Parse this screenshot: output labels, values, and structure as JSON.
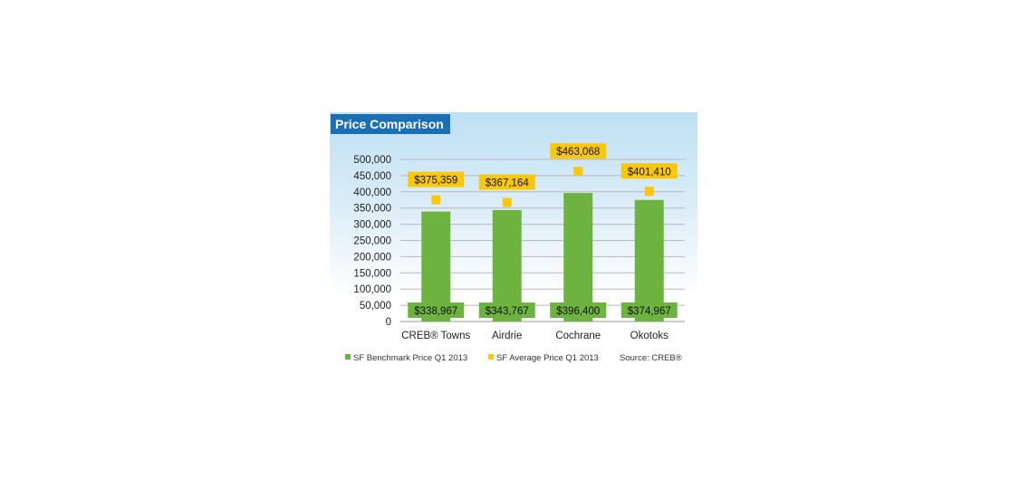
{
  "title": "Price Comparison",
  "colors": {
    "title_bg": "#1a6fb5",
    "benchmark": "#6db33f",
    "average": "#f9c80e",
    "label_green": "#6db33f",
    "label_yellow": "#f9c80e"
  },
  "chart_data": {
    "type": "bar",
    "title": "Price Comparison",
    "categories": [
      "CREB® Towns",
      "Airdrie",
      "Cochrane",
      "Okotoks"
    ],
    "series": [
      {
        "name": "SF Benchmark Price Q1 2013",
        "kind": "bar",
        "values": [
          338967,
          343767,
          396400,
          374967
        ],
        "labels": [
          "$338,967",
          "$343,767",
          "$396,400",
          "$374,967"
        ]
      },
      {
        "name": "SF Average Price Q1 2013",
        "kind": "marker",
        "values": [
          375359,
          367164,
          463068,
          401410
        ],
        "labels": [
          "$375,359",
          "$367,164",
          "$463,068",
          "$401,410"
        ]
      }
    ],
    "yticks": [
      "0",
      "50,000",
      "100,000",
      "150,000",
      "200,000",
      "250,000",
      "300,000",
      "350,000",
      "400,000",
      "450,000",
      "500,000"
    ],
    "ylim": [
      0,
      500000
    ],
    "grid": true,
    "source": "Source: CREB®"
  }
}
